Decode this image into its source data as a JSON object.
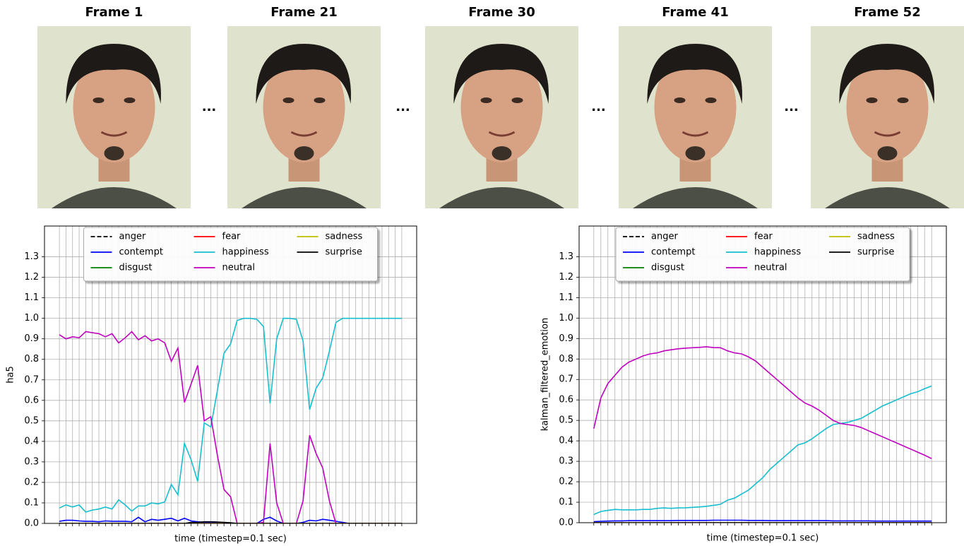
{
  "frames": [
    "Frame 1",
    "Frame 21",
    "Frame 30",
    "Frame 41",
    "Frame 52"
  ],
  "separators": [
    "...",
    "...",
    "...",
    "..."
  ],
  "chart_data": [
    {
      "type": "line",
      "xlabel": "time (timestep=0.1 sec)",
      "ylabel": "ha5",
      "ylim": [
        0,
        1.45
      ],
      "yticks": [
        {
          "value": 0,
          "label": "0.0"
        },
        {
          "value": 0.1,
          "label": "0.1"
        },
        {
          "value": 0.2,
          "label": "0.2"
        },
        {
          "value": 0.3,
          "label": "0.3"
        },
        {
          "value": 0.4,
          "label": "0.4"
        },
        {
          "value": 0.5,
          "label": "0.5"
        },
        {
          "value": 0.6,
          "label": "0.6"
        },
        {
          "value": 0.7,
          "label": "0.7"
        },
        {
          "value": 0.8,
          "label": "0.8"
        },
        {
          "value": 0.9,
          "label": "0.9"
        },
        {
          "value": 1,
          "label": "1.0"
        },
        {
          "value": 1.1,
          "label": "1.1"
        },
        {
          "value": 1.2,
          "label": "1.2"
        },
        {
          "value": 1.3,
          "label": "1.3"
        }
      ],
      "grid": true,
      "legend": "upper center",
      "series": [
        {
          "name": "anger",
          "color": "#000000",
          "linestyle": "dashed",
          "values": [
            0,
            0,
            0,
            0,
            0,
            0,
            0,
            0,
            0,
            0,
            0,
            0,
            0,
            0,
            0,
            0,
            0,
            0,
            0,
            0,
            0,
            0,
            0,
            0,
            0,
            0,
            0,
            0,
            0,
            0,
            0,
            0,
            0,
            0,
            0,
            0,
            0,
            0,
            0,
            0,
            0,
            0,
            0,
            0,
            0,
            0,
            0,
            0,
            0,
            0,
            0,
            0,
            0
          ]
        },
        {
          "name": "contempt",
          "color": "#0000ff",
          "linestyle": "solid",
          "values": [
            0.01,
            0.015,
            0.015,
            0.012,
            0.01,
            0.01,
            0.008,
            0.012,
            0.01,
            0.01,
            0.01,
            0.008,
            0.03,
            0.008,
            0.02,
            0.015,
            0.02,
            0.025,
            0.012,
            0.025,
            0.012,
            0.008,
            0.005,
            0.005,
            0.003,
            0,
            0,
            0,
            0,
            0,
            0,
            0.02,
            0.03,
            0.012,
            0,
            0,
            0,
            0.005,
            0.015,
            0.012,
            0.02,
            0.015,
            0.01,
            0.005,
            0,
            0,
            0,
            0,
            0,
            0,
            0,
            0,
            0
          ]
        },
        {
          "name": "disgust",
          "color": "#008000",
          "linestyle": "solid",
          "values": [
            0,
            0,
            0,
            0,
            0,
            0,
            0,
            0,
            0,
            0,
            0,
            0,
            0,
            0,
            0,
            0,
            0,
            0,
            0,
            0,
            0,
            0,
            0,
            0,
            0,
            0,
            0,
            0,
            0,
            0,
            0,
            0,
            0,
            0,
            0,
            0,
            0,
            0,
            0,
            0,
            0,
            0,
            0,
            0,
            0,
            0,
            0,
            0,
            0,
            0,
            0,
            0,
            0
          ]
        },
        {
          "name": "fear",
          "color": "#ff0000",
          "linestyle": "solid",
          "values": [
            0,
            0,
            0,
            0,
            0,
            0,
            0,
            0,
            0,
            0,
            0,
            0,
            0,
            0,
            0,
            0,
            0,
            0,
            0,
            0,
            0,
            0,
            0,
            0,
            0,
            0,
            0,
            0,
            0,
            0,
            0,
            0,
            0,
            0,
            0,
            0,
            0,
            0,
            0,
            0,
            0,
            0,
            0,
            0,
            0,
            0,
            0,
            0,
            0,
            0,
            0,
            0,
            0
          ]
        },
        {
          "name": "happiness",
          "color": "#17becf",
          "linestyle": "solid",
          "values": [
            0.075,
            0.09,
            0.08,
            0.09,
            0.055,
            0.065,
            0.07,
            0.08,
            0.07,
            0.115,
            0.09,
            0.06,
            0.085,
            0.085,
            0.1,
            0.095,
            0.105,
            0.19,
            0.14,
            0.39,
            0.31,
            0.205,
            0.49,
            0.47,
            0.65,
            0.83,
            0.875,
            0.99,
            1.0,
            1.0,
            0.995,
            0.96,
            0.585,
            0.9,
            1.0,
            1.0,
            0.995,
            0.89,
            0.555,
            0.66,
            0.71,
            0.84,
            0.98,
            1.0,
            1.0,
            1.0,
            1.0,
            1.0,
            1.0,
            1.0,
            1.0,
            1.0,
            1.0
          ]
        },
        {
          "name": "neutral",
          "color": "#bf00bf",
          "linestyle": "solid",
          "values": [
            0.92,
            0.9,
            0.91,
            0.905,
            0.935,
            0.93,
            0.925,
            0.91,
            0.925,
            0.88,
            0.905,
            0.935,
            0.895,
            0.915,
            0.89,
            0.9,
            0.88,
            0.79,
            0.855,
            0.59,
            0.68,
            0.77,
            0.5,
            0.52,
            0.33,
            0.165,
            0.13,
            0,
            0,
            0,
            0,
            0.005,
            0.39,
            0.1,
            0,
            0,
            0,
            0.11,
            0.43,
            0.34,
            0.27,
            0.11,
            0,
            0,
            0,
            0,
            0,
            0,
            0,
            0,
            0,
            0,
            0
          ]
        },
        {
          "name": "sadness",
          "color": "#bfbf00",
          "linestyle": "solid",
          "values": [
            0,
            0,
            0,
            0,
            0,
            0,
            0,
            0,
            0,
            0,
            0,
            0,
            0,
            0,
            0,
            0,
            0,
            0,
            0,
            0,
            0,
            0,
            0,
            0,
            0,
            0,
            0,
            0,
            0,
            0,
            0,
            0,
            0,
            0,
            0,
            0,
            0,
            0,
            0,
            0,
            0,
            0,
            0,
            0,
            0,
            0,
            0,
            0,
            0,
            0,
            0,
            0,
            0
          ]
        },
        {
          "name": "surprise",
          "color": "#000000",
          "linestyle": "solid",
          "values": [
            0,
            0,
            0,
            0,
            0,
            0,
            0,
            0,
            0,
            0,
            0,
            0,
            0,
            0,
            0,
            0,
            0,
            0,
            0,
            0,
            0.005,
            0.005,
            0.008,
            0.008,
            0.007,
            0.005,
            0.003,
            0,
            0,
            0,
            0,
            0,
            0,
            0,
            0,
            0,
            0,
            0,
            0,
            0,
            0,
            0,
            0,
            0,
            0,
            0,
            0,
            0,
            0,
            0,
            0,
            0,
            0
          ]
        }
      ]
    },
    {
      "type": "line",
      "xlabel": "time (timestep=0.1 sec)",
      "ylabel": "kalman_filtered_emotion",
      "ylim": [
        0,
        1.45
      ],
      "yticks": [
        {
          "value": 0,
          "label": "0.0"
        },
        {
          "value": 0.1,
          "label": "0.1"
        },
        {
          "value": 0.2,
          "label": "0.2"
        },
        {
          "value": 0.3,
          "label": "0.3"
        },
        {
          "value": 0.4,
          "label": "0.4"
        },
        {
          "value": 0.5,
          "label": "0.5"
        },
        {
          "value": 0.6,
          "label": "0.6"
        },
        {
          "value": 0.7,
          "label": "0.7"
        },
        {
          "value": 0.8,
          "label": "0.8"
        },
        {
          "value": 0.9,
          "label": "0.9"
        },
        {
          "value": 1,
          "label": "1.0"
        },
        {
          "value": 1.1,
          "label": "1.1"
        },
        {
          "value": 1.2,
          "label": "1.2"
        },
        {
          "value": 1.3,
          "label": "1.3"
        }
      ],
      "grid": true,
      "legend": "upper center",
      "series": [
        {
          "name": "anger",
          "color": "#000000",
          "linestyle": "dashed",
          "values": [
            0,
            0,
            0,
            0,
            0,
            0,
            0,
            0,
            0,
            0,
            0,
            0,
            0,
            0,
            0,
            0,
            0,
            0,
            0,
            0,
            0,
            0,
            0,
            0,
            0,
            0,
            0,
            0,
            0,
            0,
            0,
            0,
            0,
            0,
            0,
            0,
            0,
            0,
            0,
            0,
            0,
            0,
            0,
            0,
            0,
            0,
            0,
            0,
            0
          ]
        },
        {
          "name": "contempt",
          "color": "#0000ff",
          "linestyle": "solid",
          "values": [
            0.005,
            0.007,
            0.008,
            0.009,
            0.009,
            0.01,
            0.01,
            0.01,
            0.01,
            0.01,
            0.01,
            0.01,
            0.011,
            0.011,
            0.011,
            0.011,
            0.011,
            0.012,
            0.012,
            0.012,
            0.012,
            0.012,
            0.011,
            0.011,
            0.011,
            0.01,
            0.01,
            0.01,
            0.01,
            0.01,
            0.01,
            0.01,
            0.01,
            0.01,
            0.009,
            0.009,
            0.009,
            0.009,
            0.009,
            0.009,
            0.008,
            0.008,
            0.008,
            0.008,
            0.008,
            0.008,
            0.008,
            0.008,
            0.008
          ]
        },
        {
          "name": "disgust",
          "color": "#008000",
          "linestyle": "solid",
          "values": [
            0,
            0,
            0,
            0,
            0,
            0,
            0,
            0,
            0,
            0,
            0,
            0,
            0,
            0,
            0,
            0,
            0,
            0,
            0,
            0,
            0,
            0,
            0,
            0,
            0,
            0,
            0,
            0,
            0,
            0,
            0,
            0,
            0,
            0,
            0,
            0,
            0,
            0,
            0,
            0,
            0,
            0,
            0,
            0,
            0,
            0,
            0,
            0,
            0
          ]
        },
        {
          "name": "fear",
          "color": "#ff0000",
          "linestyle": "solid",
          "values": [
            0,
            0,
            0,
            0,
            0,
            0,
            0,
            0,
            0,
            0,
            0,
            0,
            0,
            0,
            0,
            0,
            0,
            0,
            0,
            0,
            0,
            0,
            0,
            0,
            0,
            0,
            0,
            0,
            0,
            0,
            0,
            0,
            0,
            0,
            0,
            0,
            0,
            0,
            0,
            0,
            0,
            0,
            0,
            0,
            0,
            0,
            0,
            0,
            0
          ]
        },
        {
          "name": "happiness",
          "color": "#17becf",
          "linestyle": "solid",
          "values": [
            0.04,
            0.055,
            0.06,
            0.065,
            0.063,
            0.063,
            0.063,
            0.065,
            0.065,
            0.07,
            0.072,
            0.07,
            0.072,
            0.073,
            0.075,
            0.077,
            0.08,
            0.085,
            0.09,
            0.11,
            0.12,
            0.14,
            0.16,
            0.19,
            0.22,
            0.26,
            0.29,
            0.32,
            0.35,
            0.38,
            0.39,
            0.41,
            0.435,
            0.46,
            0.48,
            0.485,
            0.49,
            0.5,
            0.51,
            0.53,
            0.55,
            0.57,
            0.585,
            0.6,
            0.615,
            0.63,
            0.64,
            0.655,
            0.668
          ]
        },
        {
          "name": "neutral",
          "color": "#bf00bf",
          "linestyle": "solid",
          "values": [
            0.46,
            0.61,
            0.68,
            0.72,
            0.76,
            0.785,
            0.8,
            0.815,
            0.825,
            0.83,
            0.84,
            0.845,
            0.85,
            0.853,
            0.855,
            0.857,
            0.86,
            0.856,
            0.855,
            0.84,
            0.83,
            0.825,
            0.81,
            0.79,
            0.76,
            0.73,
            0.7,
            0.67,
            0.64,
            0.61,
            0.585,
            0.57,
            0.55,
            0.525,
            0.5,
            0.485,
            0.48,
            0.475,
            0.465,
            0.45,
            0.435,
            0.42,
            0.405,
            0.39,
            0.375,
            0.36,
            0.345,
            0.33,
            0.313
          ]
        },
        {
          "name": "sadness",
          "color": "#bfbf00",
          "linestyle": "solid",
          "values": [
            0,
            0,
            0,
            0,
            0,
            0,
            0,
            0,
            0,
            0,
            0,
            0,
            0,
            0,
            0,
            0,
            0,
            0,
            0,
            0,
            0,
            0,
            0,
            0,
            0,
            0,
            0,
            0,
            0,
            0,
            0,
            0,
            0,
            0,
            0,
            0,
            0,
            0,
            0,
            0,
            0,
            0,
            0,
            0,
            0,
            0,
            0,
            0,
            0
          ]
        },
        {
          "name": "surprise",
          "color": "#000000",
          "linestyle": "solid",
          "values": [
            0,
            0,
            0,
            0,
            0,
            0,
            0,
            0,
            0,
            0,
            0,
            0,
            0,
            0,
            0,
            0,
            0,
            0,
            0,
            0,
            0,
            0,
            0,
            0,
            0,
            0,
            0,
            0,
            0,
            0,
            0,
            0,
            0,
            0,
            0,
            0,
            0,
            0,
            0,
            0,
            0,
            0,
            0,
            0,
            0,
            0,
            0,
            0,
            0
          ]
        }
      ]
    }
  ]
}
